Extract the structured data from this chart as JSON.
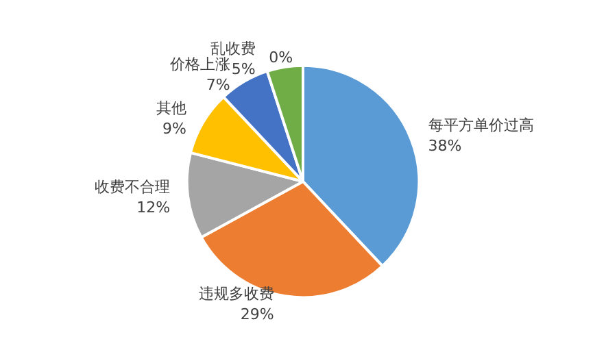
{
  "chart_data": {
    "type": "pie",
    "categories": [
      "每平方单价过高",
      "违规多收费",
      "收费不合理",
      "其他",
      "价格上涨",
      "乱收费",
      null
    ],
    "values": [
      38,
      29,
      12,
      9,
      7,
      5,
      0
    ],
    "value_labels": [
      "38%",
      "29%",
      "12%",
      "9%",
      "7%",
      "5%",
      "0%"
    ],
    "colors": [
      "#5b9bd5",
      "#ed7d31",
      "#a5a5a5",
      "#ffc000",
      "#4472c4",
      "#70ad47",
      "#264478"
    ],
    "legend": false
  }
}
